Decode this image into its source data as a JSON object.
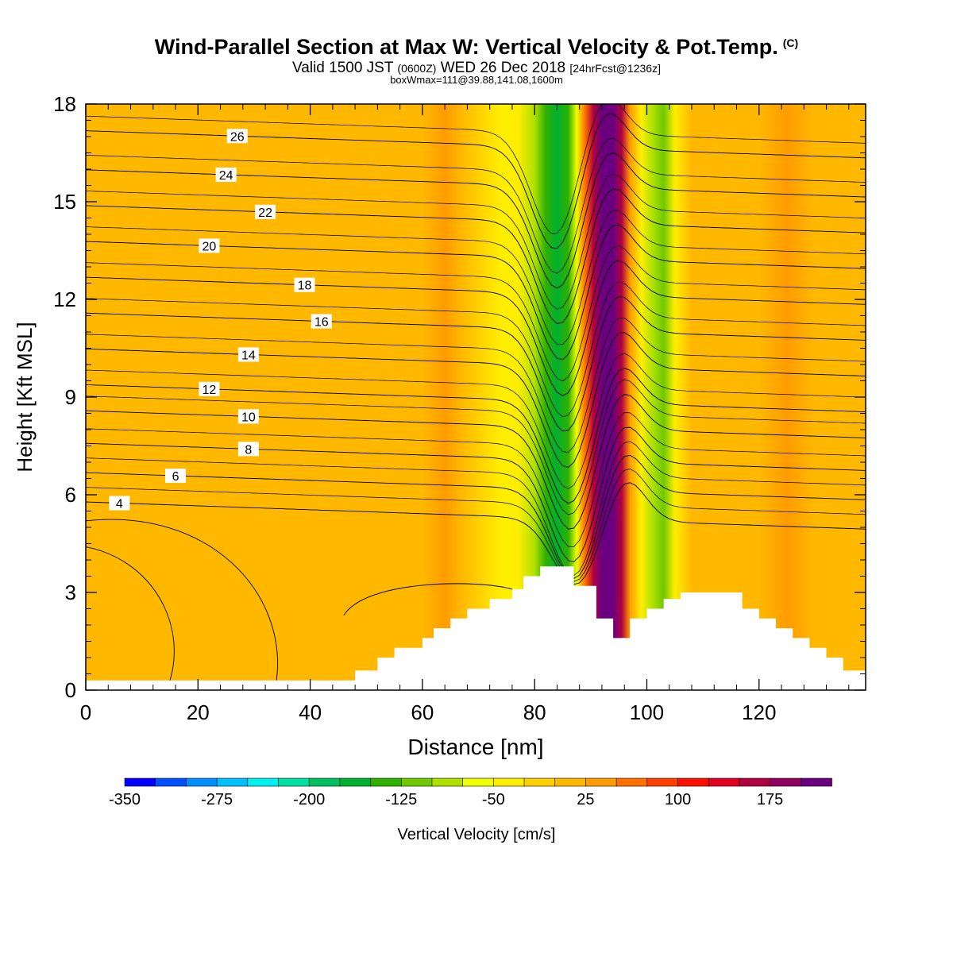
{
  "header": {
    "title": "Wind-Parallel Section at Max W: Vertical Velocity & Pot.Temp.",
    "copyright": "(C)",
    "subtitle_valid": "Valid 1500 JST",
    "subtitle_zulu": "(0600Z)",
    "subtitle_date": "WED 26 Dec 2018",
    "subtitle_fcst": "[24hrFcst@1236z]",
    "subtitle_box": "boxWmax=111@39.88,141.08,1600m"
  },
  "chart_data": {
    "type": "heatmap",
    "title": "Wind-Parallel Section at Max W: Vertical Velocity & Pot.Temp.",
    "xlabel": "Distance [nm]",
    "ylabel": "Height [Kft MSL]",
    "xlim": [
      0,
      139
    ],
    "ylim": [
      0,
      18
    ],
    "x_ticks": [
      0,
      20,
      40,
      60,
      80,
      100,
      120
    ],
    "y_ticks": [
      0,
      3,
      6,
      9,
      12,
      15,
      18
    ],
    "colorbar": {
      "label": "Vertical Velocity [cm/s]",
      "min": -350,
      "max": 225,
      "step": 25,
      "tick_labels": [
        -350,
        -275,
        -200,
        -125,
        -50,
        25,
        100,
        175
      ],
      "colors": [
        "#0000ff",
        "#0050ff",
        "#0090ff",
        "#00c0ff",
        "#00f0f0",
        "#00e0a0",
        "#00c060",
        "#00b030",
        "#30b000",
        "#70c800",
        "#b0e000",
        "#f0ff00",
        "#ffee00",
        "#ffd000",
        "#ffb800",
        "#ff9c00",
        "#ff7000",
        "#ff4000",
        "#ff1000",
        "#e00020",
        "#b00040",
        "#900060",
        "#6a0080"
      ]
    },
    "field_columns": [
      {
        "x": 0,
        "w": 10
      },
      {
        "x": 8,
        "w": 10
      },
      {
        "x": 14,
        "w": 0
      },
      {
        "x": 20,
        "w": 0
      },
      {
        "x": 28,
        "w": 20
      },
      {
        "x": 34,
        "w": 10
      },
      {
        "x": 40,
        "w": 10
      },
      {
        "x": 48,
        "w": 0
      },
      {
        "x": 56,
        "w": 0
      },
      {
        "x": 60,
        "w": 20
      },
      {
        "x": 64,
        "w": 40
      },
      {
        "x": 67,
        "w": 10
      },
      {
        "x": 70,
        "w": -20
      },
      {
        "x": 74,
        "w": -30
      },
      {
        "x": 77,
        "w": -40
      },
      {
        "x": 80,
        "w": -90
      },
      {
        "x": 82,
        "w": -140
      },
      {
        "x": 84,
        "w": -175
      },
      {
        "x": 86,
        "w": -140
      },
      {
        "x": 87.5,
        "w": -60
      },
      {
        "x": 89,
        "w": 60
      },
      {
        "x": 90.5,
        "w": 170
      },
      {
        "x": 92,
        "w": 220
      },
      {
        "x": 94,
        "w": 220
      },
      {
        "x": 95.5,
        "w": 150
      },
      {
        "x": 97,
        "w": 40
      },
      {
        "x": 99,
        "w": -40
      },
      {
        "x": 101,
        "w": -80
      },
      {
        "x": 103,
        "w": -110
      },
      {
        "x": 105,
        "w": -50
      },
      {
        "x": 108,
        "w": 0
      },
      {
        "x": 112,
        "w": 20
      },
      {
        "x": 116,
        "w": 10
      },
      {
        "x": 120,
        "w": 0
      },
      {
        "x": 125,
        "w": 30
      },
      {
        "x": 130,
        "w": 0
      },
      {
        "x": 134,
        "w": 20
      },
      {
        "x": 139,
        "w": 10
      }
    ],
    "terrain_nm_kft": [
      [
        0,
        0.3
      ],
      [
        48,
        0.3
      ],
      [
        48,
        0.6
      ],
      [
        52,
        0.6
      ],
      [
        52,
        1.0
      ],
      [
        55,
        1.0
      ],
      [
        55,
        1.3
      ],
      [
        60,
        1.3
      ],
      [
        60,
        1.6
      ],
      [
        62,
        1.6
      ],
      [
        62,
        1.9
      ],
      [
        65,
        1.9
      ],
      [
        65,
        2.2
      ],
      [
        68,
        2.2
      ],
      [
        68,
        2.5
      ],
      [
        72,
        2.5
      ],
      [
        72,
        2.8
      ],
      [
        76,
        2.8
      ],
      [
        76,
        3.1
      ],
      [
        78,
        3.1
      ],
      [
        78,
        3.5
      ],
      [
        81,
        3.5
      ],
      [
        81,
        3.8
      ],
      [
        87,
        3.8
      ],
      [
        87,
        3.2
      ],
      [
        91,
        3.2
      ],
      [
        91,
        2.2
      ],
      [
        94,
        2.2
      ],
      [
        94,
        1.6
      ],
      [
        97,
        1.6
      ],
      [
        97,
        2.2
      ],
      [
        100,
        2.2
      ],
      [
        100,
        2.5
      ],
      [
        103,
        2.5
      ],
      [
        103,
        2.8
      ],
      [
        106,
        2.8
      ],
      [
        106,
        3.0
      ],
      [
        110,
        3.0
      ],
      [
        110,
        3.0
      ],
      [
        117,
        3.0
      ],
      [
        117,
        2.5
      ],
      [
        120,
        2.5
      ],
      [
        120,
        2.2
      ],
      [
        123,
        2.2
      ],
      [
        123,
        1.9
      ],
      [
        126,
        1.9
      ],
      [
        126,
        1.6
      ],
      [
        129,
        1.6
      ],
      [
        129,
        1.3
      ],
      [
        132,
        1.3
      ],
      [
        132,
        1.0
      ],
      [
        135,
        1.0
      ],
      [
        135,
        0.6
      ],
      [
        139,
        0.6
      ]
    ],
    "isentropes": [
      {
        "label": "4",
        "base_kft": 5.6,
        "label_x_nm": 6
      },
      {
        "label": "6",
        "base_kft": 6.5,
        "label_x_nm": 16
      },
      {
        "label": "8",
        "base_kft": 7.4,
        "label_x_nm": 29
      },
      {
        "label": "10",
        "base_kft": 8.4,
        "label_x_nm": 29
      },
      {
        "label": "12",
        "base_kft": 9.2,
        "label_x_nm": 22
      },
      {
        "label": "14",
        "base_kft": 10.3,
        "label_x_nm": 29
      },
      {
        "label": "16",
        "base_kft": 11.4,
        "label_x_nm": 42
      },
      {
        "label": "18",
        "base_kft": 12.5,
        "label_x_nm": 39
      },
      {
        "label": "20",
        "base_kft": 13.6,
        "label_x_nm": 22
      },
      {
        "label": "22",
        "base_kft": 14.7,
        "label_x_nm": 32
      },
      {
        "label": "24",
        "base_kft": 15.8,
        "label_x_nm": 25
      },
      {
        "label": "26",
        "base_kft": 17.0,
        "label_x_nm": 27
      }
    ]
  }
}
